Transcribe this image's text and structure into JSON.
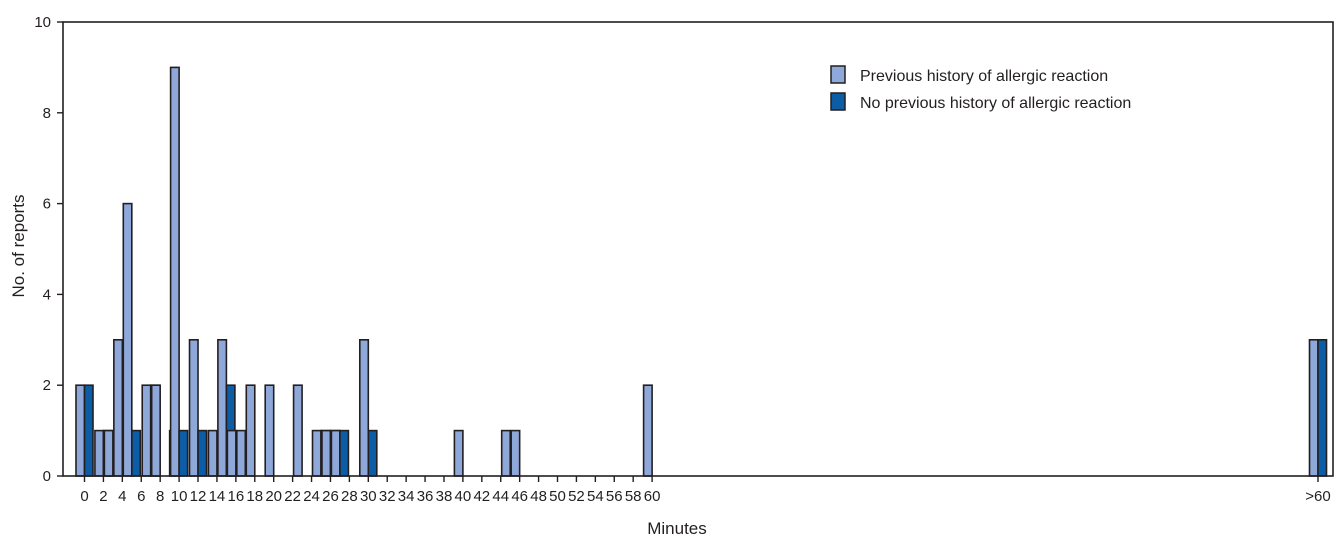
{
  "chart_data": {
    "type": "bar",
    "title": "",
    "xlabel": "Minutes",
    "ylabel": "No. of reports",
    "ylim": [
      0,
      10
    ],
    "y_ticks": [
      "0",
      "2",
      "4",
      "6",
      "8",
      "10"
    ],
    "x_ticks": [
      "0",
      "2",
      "4",
      "6",
      "8",
      "10",
      "12",
      "14",
      "16",
      "18",
      "20",
      "22",
      "24",
      "26",
      "28",
      "30",
      "32",
      "34",
      "36",
      "38",
      "40",
      "42",
      "44",
      "46",
      "48",
      "50",
      "52",
      "54",
      "56",
      "58",
      "60",
      ">60"
    ],
    "legend_position": "top-right",
    "colors": {
      "previous": "#8fa8da",
      "no_previous": "#0c5da5",
      "bar_outline": "#231f20"
    },
    "categories": [
      "0",
      "2",
      "3",
      "4",
      "5",
      "7",
      "8",
      "9",
      "10",
      "12",
      "14",
      "15",
      "16",
      "17",
      "18",
      "20",
      "23",
      "25",
      "26",
      "27",
      "30",
      "40",
      "45",
      "46",
      "60",
      ">60"
    ],
    "series": [
      {
        "name": "Previous history of allergic reaction",
        "values": [
          2,
          1,
          1,
          3,
          6,
          2,
          2,
          0,
          9,
          3,
          1,
          3,
          1,
          1,
          2,
          2,
          2,
          1,
          1,
          1,
          3,
          1,
          1,
          1,
          2,
          3
        ]
      },
      {
        "name": "No previous history of allergic reaction",
        "values": [
          2,
          1,
          0,
          0,
          1,
          2,
          0,
          1,
          1,
          1,
          0,
          2,
          0,
          0,
          0,
          0,
          0,
          1,
          1,
          1,
          1,
          0,
          0,
          0,
          0,
          3
        ]
      }
    ]
  }
}
